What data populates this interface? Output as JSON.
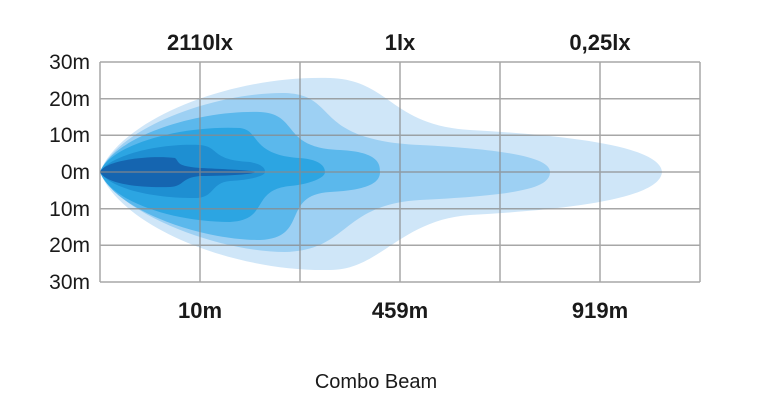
{
  "top_labels": [
    "2110lx",
    "1lx",
    "0,25lx"
  ],
  "y_labels": [
    "30m",
    "20m",
    "10m",
    "0m",
    "10m",
    "20m",
    "30m"
  ],
  "bottom_labels": [
    "10m",
    "459m",
    "919m"
  ],
  "caption": "Combo Beam"
}
